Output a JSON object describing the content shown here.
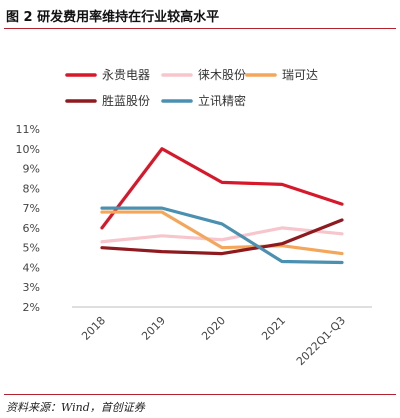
{
  "figure": {
    "title": "图 2 研发费用率维持在行业较高水平",
    "source": "资料来源：Wind，首创证券"
  },
  "chart_data": {
    "type": "line",
    "categories": [
      "2018",
      "2019",
      "2020",
      "2021",
      "2022Q1-Q3"
    ],
    "ylim": [
      2,
      11
    ],
    "yticks": [
      "2%",
      "3%",
      "4%",
      "5%",
      "6%",
      "7%",
      "8%",
      "9%",
      "10%",
      "11%"
    ],
    "ytick_values": [
      2,
      3,
      4,
      5,
      6,
      7,
      8,
      9,
      10,
      11
    ],
    "grid": false,
    "legend_position": "top",
    "series": [
      {
        "name": "永贵电器",
        "color": "#d7182a",
        "values": [
          6.0,
          10.0,
          8.3,
          8.2,
          7.2
        ]
      },
      {
        "name": "徕木股份",
        "color": "#f7c6cc",
        "values": [
          5.3,
          5.6,
          5.4,
          6.0,
          5.7
        ]
      },
      {
        "name": "瑞可达",
        "color": "#f4a65a",
        "values": [
          6.8,
          6.8,
          5.0,
          5.1,
          4.7
        ]
      },
      {
        "name": "胜蓝股份",
        "color": "#8e1a1f",
        "values": [
          5.0,
          4.8,
          4.7,
          5.2,
          6.4
        ]
      },
      {
        "name": "立讯精密",
        "color": "#4a90b0",
        "values": [
          7.0,
          7.0,
          6.2,
          4.3,
          4.25
        ]
      }
    ]
  }
}
